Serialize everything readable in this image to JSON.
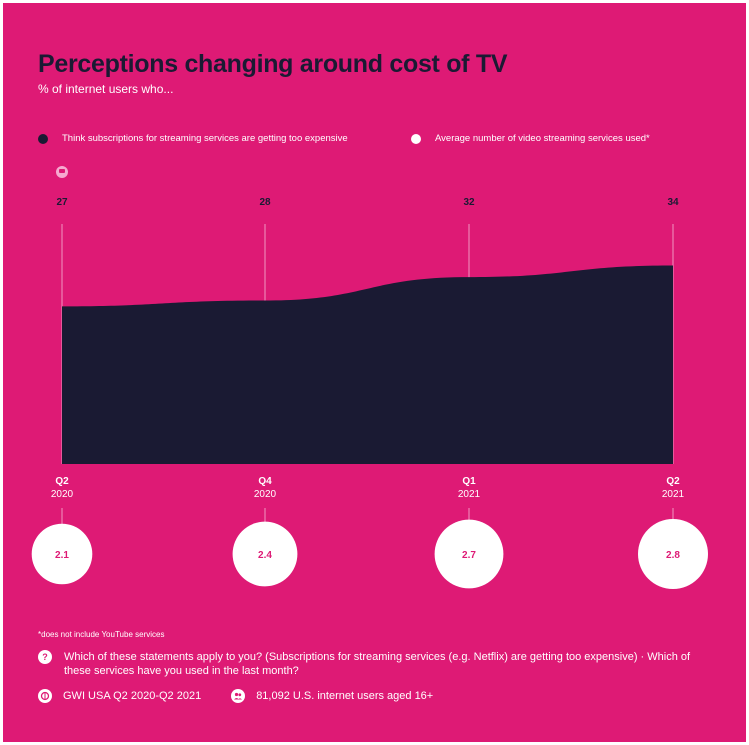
{
  "title": "Perceptions changing around cost of TV",
  "subtitle": "% of internet users who...",
  "legend": [
    {
      "label": "Think subscriptions for streaming services are getting too expensive",
      "color": "#1a1a33"
    },
    {
      "label": "Average number of video streaming services used*",
      "color": "#ffffff"
    }
  ],
  "chart_data": {
    "type": "area",
    "categories": [
      {
        "quarter": "Q2",
        "year": "2020"
      },
      {
        "quarter": "Q4",
        "year": "2020"
      },
      {
        "quarter": "Q1",
        "year": "2021"
      },
      {
        "quarter": "Q2",
        "year": "2021"
      }
    ],
    "series": [
      {
        "name": "Think subscriptions for streaming services are getting too expensive",
        "values": [
          27,
          28,
          32,
          34
        ],
        "color": "#1a1a33"
      },
      {
        "name": "Average number of video streaming services used*",
        "values": [
          2.1,
          2.4,
          2.7,
          2.8
        ],
        "color": "#ffffff"
      }
    ],
    "value_labels": [
      "27",
      "28",
      "32",
      "34"
    ],
    "bubble_labels": [
      "2.1",
      "2.4",
      "2.7",
      "2.8"
    ],
    "ylim": [
      0,
      60
    ],
    "grid": false
  },
  "footnote": "*does not include YouTube services",
  "question": "Which of these statements apply to you? (Subscriptions for streaming services (e.g. Netflix) are getting too expensive) · Which of these services have you used in the last month?",
  "source": "GWI USA Q2 2020-Q2 2021",
  "sample": "81,092 U.S. internet users aged 16+",
  "colors": {
    "background": "#de1a75",
    "dark": "#1a1a33",
    "accent": "#de1a75"
  }
}
